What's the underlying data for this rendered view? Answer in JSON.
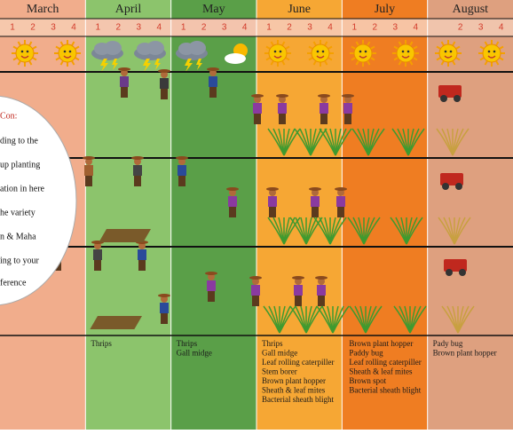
{
  "months": [
    {
      "name": "March",
      "weeks": [
        "1",
        "2",
        "3",
        "4"
      ],
      "pests": []
    },
    {
      "name": "April",
      "weeks": [
        "1",
        "2",
        "3",
        "4"
      ],
      "pests": [
        "Thrips"
      ]
    },
    {
      "name": "May",
      "weeks": [
        "1",
        "2",
        "3",
        "4"
      ],
      "pests": [
        "Thrips",
        "Gall midge"
      ]
    },
    {
      "name": "June",
      "weeks": [
        "1",
        "2",
        "3",
        "4"
      ],
      "pests": [
        "Thrips",
        "Gall midge",
        "Leaf rolling caterpiller",
        "Stem borer",
        "Brown plant hopper",
        "Sheath & leaf mites",
        "Bacterial sheath blight"
      ]
    },
    {
      "name": "July",
      "weeks": [
        "1",
        "2",
        "3",
        "4"
      ],
      "pests": [
        "Brown plant hopper",
        "Paddy bug",
        "Leaf rolling caterpiller",
        "Sheath & leaf mites",
        "Brown spot",
        "Bacterial sheath blight"
      ]
    },
    {
      "name": "August",
      "weeks": [
        "2",
        "3",
        "4"
      ],
      "pests": [
        "Pady bug",
        "Brown plant hopper"
      ]
    }
  ],
  "note": {
    "title": "Con:",
    "lines": [
      "ding to the",
      "up planting",
      "ation in here",
      "he variety",
      "n  & Maha",
      "ing to your",
      "ference"
    ]
  }
}
